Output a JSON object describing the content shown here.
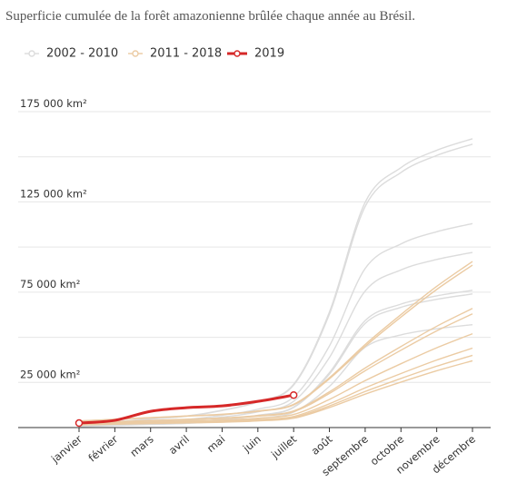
{
  "chart_data": {
    "type": "line",
    "title": "Superficie cumulée de la forêt amazonienne brûlée chaque année au Brésil.",
    "categories": [
      "janvier",
      "février",
      "mars",
      "avril",
      "mai",
      "juin",
      "juillet",
      "août",
      "septembre",
      "octobre",
      "novembre",
      "décembre"
    ],
    "ylim": [
      0,
      175000
    ],
    "yticks": [
      {
        "value": 25000,
        "label": "25 000 km²"
      },
      {
        "value": 75000,
        "label": "75 000 km²"
      },
      {
        "value": 125000,
        "label": "125 000 km²"
      },
      {
        "value": 175000,
        "label": "175 000 km²"
      }
    ],
    "ygrid": [
      0,
      50000,
      100000,
      150000
    ],
    "groups": [
      {
        "name": "2002 - 2010",
        "color": "#dcdcdc",
        "lines": [
          [
            1600,
            3200,
            4800,
            6400,
            9600,
            14400,
            24000,
            64000,
            124800,
            144000,
            153600,
            160000
          ],
          [
            1570,
            3140,
            4710,
            6280,
            9420,
            14130,
            23550,
            62800,
            122460,
            141300,
            150720,
            157000
          ],
          [
            1130,
            2260,
            3390,
            4520,
            6780,
            10170,
            16950,
            45200,
            88140,
            101700,
            108480,
            113000
          ],
          [
            970,
            1940,
            2910,
            3880,
            5820,
            8730,
            14550,
            38800,
            75660,
            87300,
            93120,
            97000
          ],
          [
            760,
            1520,
            2280,
            3040,
            4560,
            6840,
            11400,
            30400,
            59280,
            68400,
            72960,
            76000
          ],
          [
            740,
            1480,
            2220,
            2960,
            4440,
            6660,
            11100,
            29600,
            57720,
            66600,
            71040,
            74000
          ],
          [
            570,
            1140,
            1710,
            2280,
            3420,
            5130,
            8550,
            22800,
            44460,
            51300,
            54720,
            57000
          ]
        ]
      },
      {
        "name": "2011 - 2018",
        "color": "#ebcba3",
        "lines": [
          [
            3680,
            4600,
            5520,
            6440,
            7360,
            9200,
            12880,
            27600,
            46000,
            62560,
            78200,
            92000
          ],
          [
            3600,
            4500,
            5400,
            6300,
            7200,
            9000,
            12600,
            27000,
            45000,
            61200,
            76500,
            90000
          ],
          [
            2640,
            3300,
            3960,
            4620,
            5280,
            6600,
            9240,
            19800,
            33000,
            44880,
            56100,
            66000
          ],
          [
            2520,
            3150,
            3780,
            4410,
            5040,
            6300,
            8820,
            18900,
            31500,
            42840,
            53550,
            63000
          ],
          [
            2080,
            2600,
            3120,
            3640,
            4160,
            5200,
            7280,
            15600,
            26000,
            35360,
            44200,
            52000
          ],
          [
            1760,
            2200,
            2640,
            3080,
            3520,
            4400,
            6160,
            13200,
            22000,
            29920,
            37400,
            44000
          ],
          [
            1600,
            2000,
            2400,
            2800,
            3200,
            4000,
            5600,
            12000,
            20000,
            27200,
            34000,
            40000
          ],
          [
            1480,
            1850,
            2220,
            2590,
            2960,
            3700,
            5180,
            11100,
            18500,
            25160,
            31450,
            37000
          ]
        ]
      },
      {
        "name": "2019",
        "color": "#d62828",
        "highlight": true,
        "lines": [
          [
            2500,
            4000,
            9000,
            11000,
            12000,
            14500,
            18000,
            null,
            null,
            null,
            null,
            null
          ]
        ]
      }
    ]
  }
}
